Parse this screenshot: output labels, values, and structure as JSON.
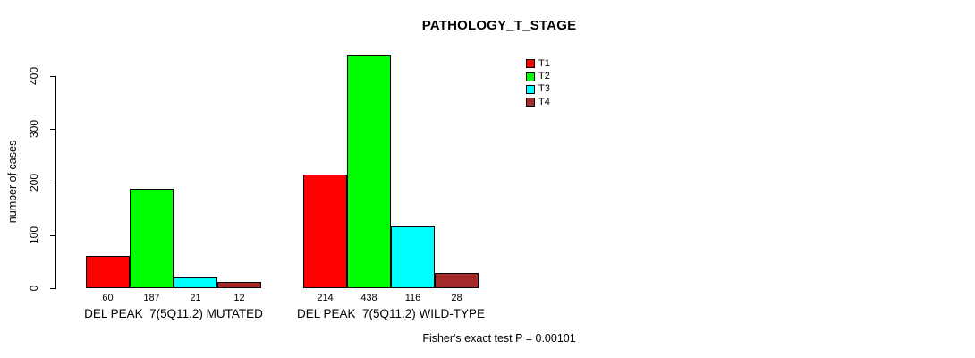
{
  "chart_data": {
    "type": "bar",
    "title": "PATHOLOGY_T_STAGE",
    "ylabel": "number of cases",
    "xlabel": "",
    "yticks": [
      0,
      100,
      200,
      300,
      400
    ],
    "ylim": [
      0,
      440
    ],
    "grid": false,
    "legend_position": "top-right",
    "series": [
      {
        "name": "T1",
        "color": "#FF0000"
      },
      {
        "name": "T2",
        "color": "#00FF00"
      },
      {
        "name": "T3",
        "color": "#00FFFF"
      },
      {
        "name": "T4",
        "color": "#A52A2A"
      }
    ],
    "groups": [
      {
        "label": "DEL PEAK  7(5Q11.2) MUTATED",
        "values": [
          60,
          187,
          21,
          12
        ]
      },
      {
        "label": "DEL PEAK  7(5Q11.2) WILD-TYPE",
        "values": [
          214,
          438,
          116,
          28
        ]
      }
    ],
    "bar_value_labels_shown": true,
    "footnote": "Fisher's exact test P = 0.00101"
  }
}
